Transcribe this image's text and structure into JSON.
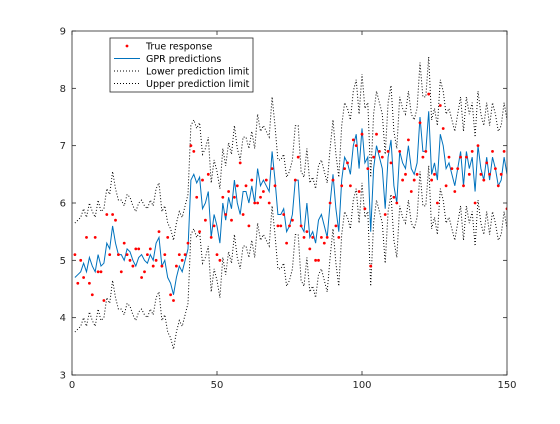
{
  "chart_data": {
    "type": "line",
    "title": "",
    "xlabel": "",
    "ylabel": "",
    "xlim": [
      0,
      150
    ],
    "ylim": [
      3,
      9
    ],
    "xticks": [
      0,
      50,
      100,
      150
    ],
    "yticks": [
      3,
      4,
      5,
      6,
      7,
      8,
      9
    ],
    "grid": false,
    "legend_position": "top-left",
    "legend": [
      {
        "label": "True response",
        "style": "marker",
        "color": "#ff0000"
      },
      {
        "label": "GPR predictions",
        "style": "line",
        "color": "#0072bd"
      },
      {
        "label": "Lower prediction limit",
        "style": "dotted",
        "color": "#000000"
      },
      {
        "label": "Upper prediction limit",
        "style": "dotted",
        "color": "#000000"
      }
    ],
    "series": [
      {
        "name": "True response",
        "color": "#ff0000",
        "x": [
          1,
          2,
          3,
          4,
          5,
          6,
          7,
          8,
          9,
          10,
          11,
          12,
          13,
          14,
          15,
          16,
          17,
          18,
          19,
          20,
          21,
          22,
          23,
          24,
          25,
          26,
          27,
          28,
          29,
          30,
          31,
          32,
          33,
          34,
          35,
          36,
          37,
          38,
          39,
          40,
          41,
          42,
          43,
          44,
          45,
          46,
          47,
          48,
          49,
          50,
          51,
          52,
          53,
          54,
          55,
          56,
          57,
          58,
          59,
          60,
          61,
          62,
          63,
          64,
          65,
          66,
          67,
          68,
          69,
          70,
          71,
          72,
          73,
          74,
          75,
          76,
          77,
          78,
          79,
          80,
          81,
          82,
          83,
          84,
          85,
          86,
          87,
          88,
          89,
          90,
          91,
          92,
          93,
          94,
          95,
          96,
          97,
          98,
          99,
          100,
          101,
          102,
          103,
          104,
          105,
          106,
          107,
          108,
          109,
          110,
          111,
          112,
          113,
          114,
          115,
          116,
          117,
          118,
          119,
          120,
          121,
          122,
          123,
          124,
          125,
          126,
          127,
          128,
          129,
          130,
          131,
          132,
          133,
          134,
          135,
          136,
          137,
          138,
          139,
          140,
          141,
          142,
          143,
          144,
          145,
          146,
          147,
          148,
          149,
          150
        ],
        "y": [
          5.1,
          4.6,
          5.0,
          4.7,
          5.4,
          4.6,
          4.4,
          5.4,
          4.8,
          4.8,
          4.3,
          5.8,
          5.1,
          5.8,
          5.7,
          5.1,
          4.8,
          5.3,
          5.1,
          5.0,
          4.9,
          5.2,
          5.2,
          4.7,
          4.8,
          5.1,
          5.2,
          4.9,
          5.0,
          5.5,
          4.9,
          5.1,
          5.4,
          4.4,
          4.3,
          4.9,
          5.1,
          5.0,
          5.1,
          5.3,
          7.0,
          6.9,
          6.1,
          5.5,
          6.4,
          5.7,
          6.5,
          5.4,
          5.6,
          5.1,
          5.0,
          6.1,
          5.8,
          6.2,
          5.7,
          6.1,
          6.3,
          6.7,
          5.8,
          6.3,
          5.6,
          6.4,
          6.0,
          6.0,
          6.1,
          6.2,
          6.4,
          6.0,
          6.6,
          6.3,
          5.6,
          5.6,
          5.8,
          5.3,
          5.6,
          5.7,
          6.4,
          6.8,
          5.6,
          5.4,
          5.5,
          5.2,
          5.4,
          5.0,
          5.0,
          5.4,
          5.3,
          5.4,
          6.0,
          6.4,
          5.6,
          5.4,
          6.3,
          6.6,
          6.7,
          6.3,
          7.1,
          7.0,
          6.2,
          7.2,
          5.9,
          6.6,
          4.9,
          6.8,
          7.2,
          6.9,
          6.8,
          5.8,
          6.9,
          6.7,
          6.1,
          6.0,
          6.9,
          6.4,
          6.5,
          7.1,
          6.2,
          6.4,
          6.5,
          7.4,
          6.8,
          6.9,
          7.9,
          6.4,
          6.5,
          6.0,
          7.7,
          7.3,
          6.3,
          6.8,
          6.6,
          6.2,
          6.6,
          6.8,
          6.3,
          6.8,
          6.5,
          6.9,
          6.0,
          7.0,
          6.5,
          6.4,
          6.7,
          6.5,
          6.9,
          6.6,
          6.3,
          6.5,
          6.9,
          5.9
        ]
      },
      {
        "name": "GPR predictions",
        "color": "#0072bd",
        "x": [
          1,
          2,
          3,
          4,
          5,
          6,
          7,
          8,
          9,
          10,
          11,
          12,
          13,
          14,
          15,
          16,
          17,
          18,
          19,
          20,
          21,
          22,
          23,
          24,
          25,
          26,
          27,
          28,
          29,
          30,
          31,
          32,
          33,
          34,
          35,
          36,
          37,
          38,
          39,
          40,
          41,
          42,
          43,
          44,
          45,
          46,
          47,
          48,
          49,
          50,
          51,
          52,
          53,
          54,
          55,
          56,
          57,
          58,
          59,
          60,
          61,
          62,
          63,
          64,
          65,
          66,
          67,
          68,
          69,
          70,
          71,
          72,
          73,
          74,
          75,
          76,
          77,
          78,
          79,
          80,
          81,
          82,
          83,
          84,
          85,
          86,
          87,
          88,
          89,
          90,
          91,
          92,
          93,
          94,
          95,
          96,
          97,
          98,
          99,
          100,
          101,
          102,
          103,
          104,
          105,
          106,
          107,
          108,
          109,
          110,
          111,
          112,
          113,
          114,
          115,
          116,
          117,
          118,
          119,
          120,
          121,
          122,
          123,
          124,
          125,
          126,
          127,
          128,
          129,
          130,
          131,
          132,
          133,
          134,
          135,
          136,
          137,
          138,
          139,
          140,
          141,
          142,
          143,
          144,
          145,
          146,
          147,
          148,
          149,
          150
        ],
        "y": [
          4.7,
          4.75,
          4.8,
          4.95,
          4.8,
          5.05,
          4.9,
          4.8,
          5.1,
          4.9,
          4.95,
          5.3,
          5.2,
          5.6,
          5.3,
          5.1,
          5.1,
          5.0,
          5.2,
          5.15,
          5.0,
          4.9,
          5.05,
          5.1,
          5.0,
          4.95,
          5.1,
          5.0,
          5.3,
          5.4,
          4.9,
          5.0,
          4.7,
          4.6,
          4.4,
          4.7,
          4.9,
          4.8,
          5.0,
          5.2,
          6.4,
          6.5,
          6.35,
          6.45,
          5.9,
          6.0,
          6.2,
          5.4,
          5.8,
          5.6,
          5.3,
          6.0,
          5.7,
          6.1,
          5.9,
          6.4,
          6.0,
          5.8,
          6.2,
          6.2,
          6.0,
          6.3,
          6.0,
          6.6,
          6.3,
          6.4,
          6.3,
          6.2,
          6.9,
          6.4,
          5.8,
          5.8,
          5.9,
          5.5,
          5.6,
          5.8,
          6.4,
          6.4,
          5.6,
          5.5,
          6.0,
          5.4,
          5.5,
          5.3,
          5.7,
          5.8,
          5.6,
          5.4,
          6.0,
          6.5,
          5.9,
          5.5,
          6.4,
          6.8,
          6.7,
          6.5,
          7.0,
          7.2,
          6.6,
          7.3,
          6.7,
          6.8,
          5.5,
          6.6,
          7.0,
          6.8,
          6.6,
          5.9,
          6.8,
          7.1,
          6.3,
          6.0,
          6.9,
          6.7,
          6.6,
          7.0,
          6.6,
          6.5,
          6.7,
          7.5,
          6.9,
          6.9,
          7.6,
          6.5,
          6.7,
          6.4,
          7.2,
          7.0,
          6.6,
          6.7,
          6.5,
          6.3,
          6.6,
          6.9,
          6.3,
          6.9,
          6.6,
          6.8,
          6.2,
          7.0,
          6.6,
          6.4,
          6.8,
          6.4,
          6.8,
          6.6,
          6.3,
          6.4,
          6.8,
          6.5
        ]
      }
    ],
    "prediction_interval_half_width": 0.95
  }
}
